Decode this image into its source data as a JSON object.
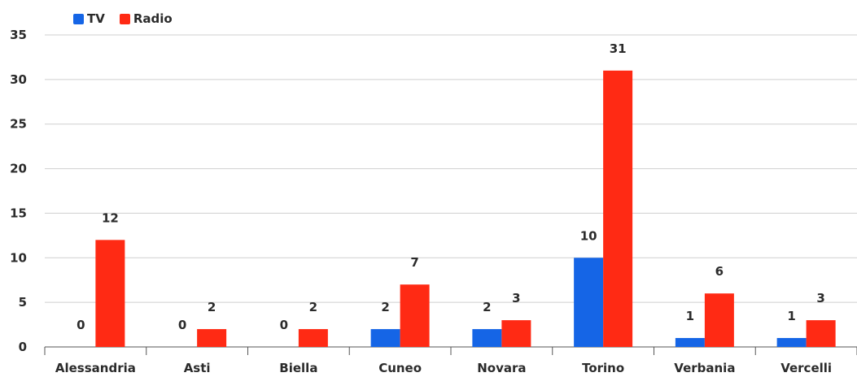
{
  "chart_data": {
    "type": "bar",
    "categories": [
      "Alessandria",
      "Asti",
      "Biella",
      "Cuneo",
      "Novara",
      "Torino",
      "Verbania",
      "Vercelli"
    ],
    "series": [
      {
        "name": "TV",
        "values": [
          0,
          0,
          0,
          2,
          2,
          10,
          1,
          1
        ],
        "color": "#1565e6"
      },
      {
        "name": "Radio",
        "values": [
          12,
          2,
          2,
          7,
          3,
          31,
          6,
          3
        ],
        "color": "#ff2a14"
      }
    ],
    "yticks": [
      0,
      5,
      10,
      15,
      20,
      25,
      30,
      35
    ],
    "ylim": [
      0,
      35
    ],
    "grid": true,
    "legend": "top-left"
  }
}
